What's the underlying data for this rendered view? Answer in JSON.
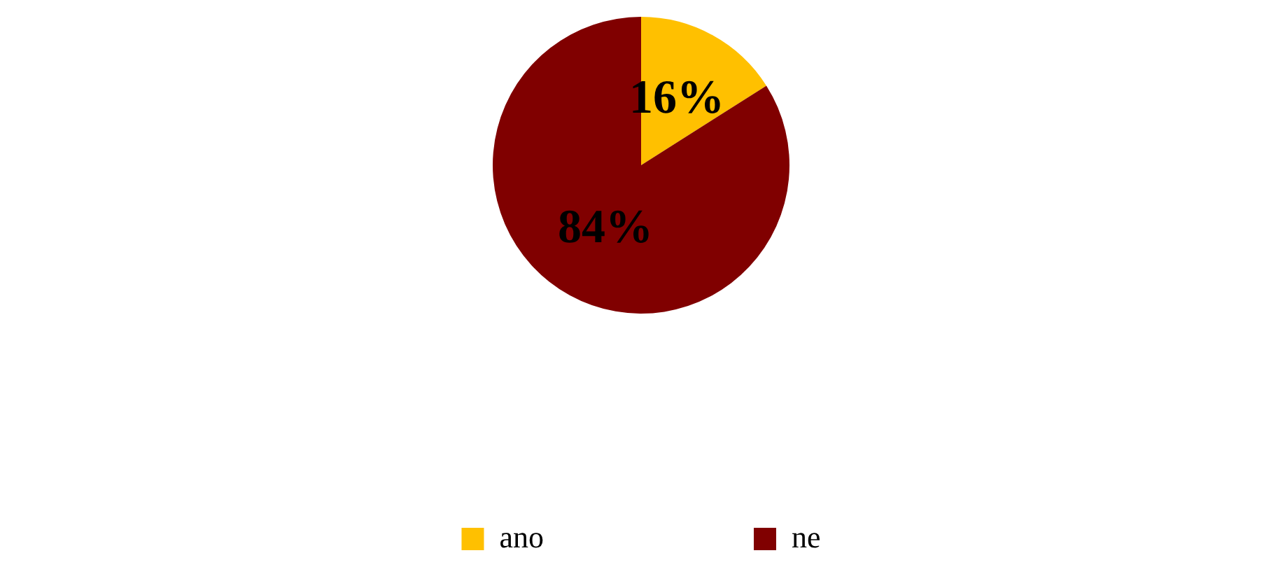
{
  "chart_data": {
    "type": "pie",
    "categories": [
      "ano",
      "ne"
    ],
    "values": [
      16,
      84
    ],
    "colors": [
      "#ffc000",
      "#800000"
    ],
    "value_labels": [
      "16%",
      "84%"
    ],
    "legend": "bottom"
  }
}
